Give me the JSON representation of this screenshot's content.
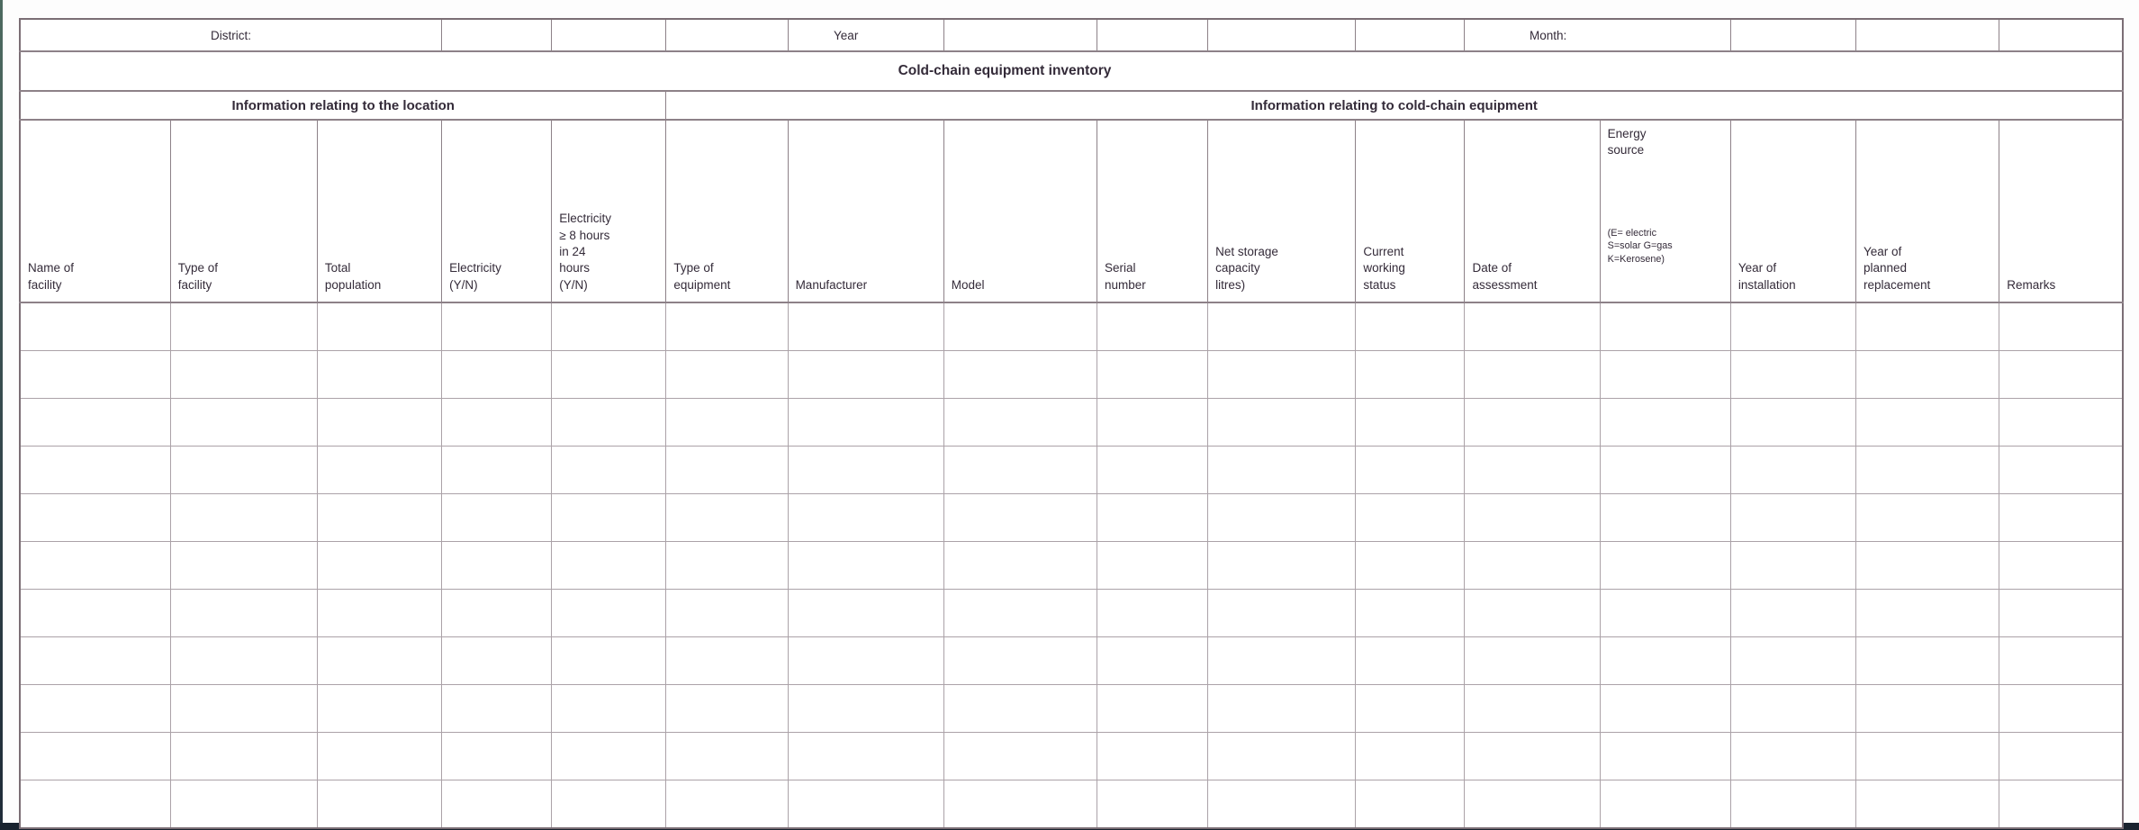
{
  "top_row": {
    "district_label": "District:",
    "year_label": "Year",
    "month_label": "Month:"
  },
  "title": "Cold-chain equipment inventory",
  "group_headers": {
    "location": "Information relating to the location",
    "equipment": "Information relating to cold-chain equipment"
  },
  "columns": [
    {
      "label": "Name of\nfacility"
    },
    {
      "label": "Type of\nfacility"
    },
    {
      "label": "Total\npopulation"
    },
    {
      "label": "Electricity\n(Y/N)"
    },
    {
      "label": "Electricity\n≥ 8 hours\nin 24\nhours\n(Y/N)"
    },
    {
      "label": "Type of\nequipment"
    },
    {
      "label": "Manufacturer"
    },
    {
      "label": "Model"
    },
    {
      "label": "Serial\nnumber"
    },
    {
      "label": "Net storage\ncapacity\nlitres)"
    },
    {
      "label": "Current\nworking\nstatus"
    },
    {
      "label": "Date of\nassessment"
    },
    {
      "label": "Energy\nsource",
      "legend": "(E= electric\nS=solar G=gas\nK=Kerosene)"
    },
    {
      "label": "Year of\ninstallation"
    },
    {
      "label": "Year of\nplanned\nreplacement"
    },
    {
      "label": "Remarks"
    }
  ],
  "grid": {
    "row_count": 11,
    "col_count": 16
  },
  "colors": {
    "background": "#ffffff",
    "text": "#342b39",
    "grid_line": "#aba2a8",
    "section_line": "#8d8188",
    "outer_border": "#7b6e75",
    "window_edge_top": "#4d6a60",
    "window_edge_bottom": "#1e2a37",
    "bottom_bar": "#19232f"
  }
}
